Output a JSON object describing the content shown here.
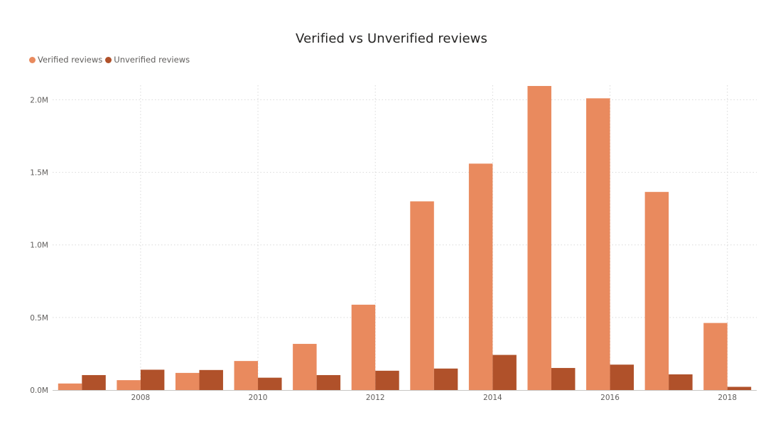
{
  "chart_data": {
    "type": "bar",
    "title": "Verified vs Unverified reviews",
    "xlabel": "",
    "ylabel": "",
    "x": [
      2007,
      2008,
      2009,
      2010,
      2011,
      2012,
      2013,
      2014,
      2015,
      2016,
      2017,
      2018
    ],
    "x_tick_labels": [
      "2008",
      "2010",
      "2012",
      "2014",
      "2016",
      "2018"
    ],
    "x_tick_values": [
      2008,
      2010,
      2012,
      2014,
      2016,
      2018
    ],
    "y_tick_labels": [
      "0.0M",
      "0.5M",
      "1.0M",
      "1.5M",
      "2.0M"
    ],
    "y_tick_values": [
      0,
      500000,
      1000000,
      1500000,
      2000000
    ],
    "ylim": [
      0,
      2100000
    ],
    "grid": true,
    "legend_position": "top-left",
    "series": [
      {
        "name": "Verified reviews",
        "color": "#E98A5E",
        "values": [
          45000,
          68000,
          118000,
          200000,
          318000,
          588000,
          1300000,
          1560000,
          2095000,
          2010000,
          1365000,
          462000
        ]
      },
      {
        "name": "Unverified reviews",
        "color": "#B0512A",
        "values": [
          103000,
          140000,
          138000,
          85000,
          103000,
          133000,
          148000,
          242000,
          152000,
          175000,
          108000,
          22000
        ]
      }
    ]
  }
}
